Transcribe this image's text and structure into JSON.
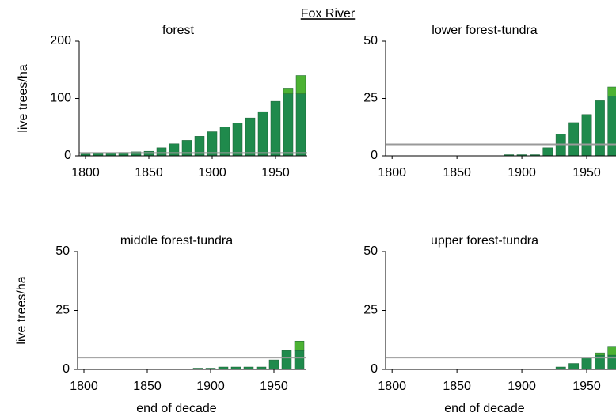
{
  "title": "Fox River",
  "chart_data": [
    {
      "type": "bar",
      "title": "forest",
      "y_label": "live trees/ha",
      "x": [
        1800,
        1810,
        1820,
        1830,
        1840,
        1850,
        1860,
        1870,
        1880,
        1890,
        1900,
        1910,
        1920,
        1930,
        1940,
        1950,
        1960,
        1970
      ],
      "series": [
        {
          "color": "#1f8a4c",
          "values": [
            3,
            4,
            5,
            6,
            7,
            8,
            14,
            21,
            27,
            34,
            42,
            50,
            57,
            66,
            77,
            95,
            108,
            108
          ]
        },
        {
          "color": "#4cb233",
          "values": [
            0,
            0,
            0,
            0,
            0,
            0,
            0,
            0,
            0,
            0,
            0,
            0,
            0,
            0,
            0,
            0,
            10,
            32
          ]
        }
      ],
      "reference_line": 5,
      "reference_color": "#999999",
      "xlim": [
        1795,
        1975
      ],
      "xticks": [
        1800,
        1850,
        1900,
        1950
      ],
      "ylim": [
        0,
        200
      ],
      "yticks": [
        0,
        100,
        200
      ]
    },
    {
      "type": "bar",
      "title": "lower forest-tundra",
      "x": [
        1800,
        1810,
        1820,
        1830,
        1840,
        1850,
        1860,
        1870,
        1880,
        1890,
        1900,
        1910,
        1920,
        1930,
        1940,
        1950,
        1960,
        1970
      ],
      "series": [
        {
          "color": "#1f8a4c",
          "values": [
            0,
            0,
            0,
            0,
            0,
            0,
            0,
            0,
            0,
            0.5,
            0.5,
            0.5,
            3.5,
            9.5,
            14.5,
            18,
            24,
            26
          ]
        },
        {
          "color": "#4cb233",
          "values": [
            0,
            0,
            0,
            0,
            0,
            0,
            0,
            0,
            0,
            0,
            0,
            0,
            0,
            0,
            0,
            0,
            0,
            4
          ]
        }
      ],
      "reference_line": 5,
      "reference_color": "#999999",
      "xlim": [
        1795,
        1975
      ],
      "xticks": [
        1800,
        1850,
        1900,
        1950
      ],
      "ylim": [
        0,
        50
      ],
      "yticks": [
        0,
        25,
        50
      ]
    },
    {
      "type": "bar",
      "title": "middle forest-tundra",
      "y_label": "live trees/ha",
      "x_label": "end of decade",
      "x": [
        1800,
        1810,
        1820,
        1830,
        1840,
        1850,
        1860,
        1870,
        1880,
        1890,
        1900,
        1910,
        1920,
        1930,
        1940,
        1950,
        1960,
        1970
      ],
      "series": [
        {
          "color": "#1f8a4c",
          "values": [
            0,
            0,
            0,
            0,
            0,
            0,
            0,
            0,
            0,
            0.5,
            0.5,
            1,
            1,
            1,
            1,
            4,
            8,
            8
          ]
        },
        {
          "color": "#4cb233",
          "values": [
            0,
            0,
            0,
            0,
            0,
            0,
            0,
            0,
            0,
            0,
            0,
            0,
            0,
            0,
            0,
            0,
            0,
            4
          ]
        }
      ],
      "reference_line": 5,
      "reference_color": "#999999",
      "xlim": [
        1795,
        1975
      ],
      "xticks": [
        1800,
        1850,
        1900,
        1950
      ],
      "ylim": [
        0,
        50
      ],
      "yticks": [
        0,
        25,
        50
      ]
    },
    {
      "type": "bar",
      "title": "upper forest-tundra",
      "x_label": "end of decade",
      "x": [
        1800,
        1810,
        1820,
        1830,
        1840,
        1850,
        1860,
        1870,
        1880,
        1890,
        1900,
        1910,
        1920,
        1930,
        1940,
        1950,
        1960,
        1970
      ],
      "series": [
        {
          "color": "#1f8a4c",
          "values": [
            0,
            0,
            0,
            0,
            0,
            0,
            0,
            0,
            0,
            0,
            0,
            0,
            0,
            1,
            2.5,
            5,
            6,
            6
          ]
        },
        {
          "color": "#4cb233",
          "values": [
            0,
            0,
            0,
            0,
            0,
            0,
            0,
            0,
            0,
            0,
            0,
            0,
            0,
            0,
            0,
            0,
            1,
            3.5
          ]
        }
      ],
      "reference_line": 5,
      "reference_color": "#999999",
      "xlim": [
        1795,
        1975
      ],
      "xticks": [
        1800,
        1850,
        1900,
        1950
      ],
      "ylim": [
        0,
        50
      ],
      "yticks": [
        0,
        25,
        50
      ]
    }
  ]
}
